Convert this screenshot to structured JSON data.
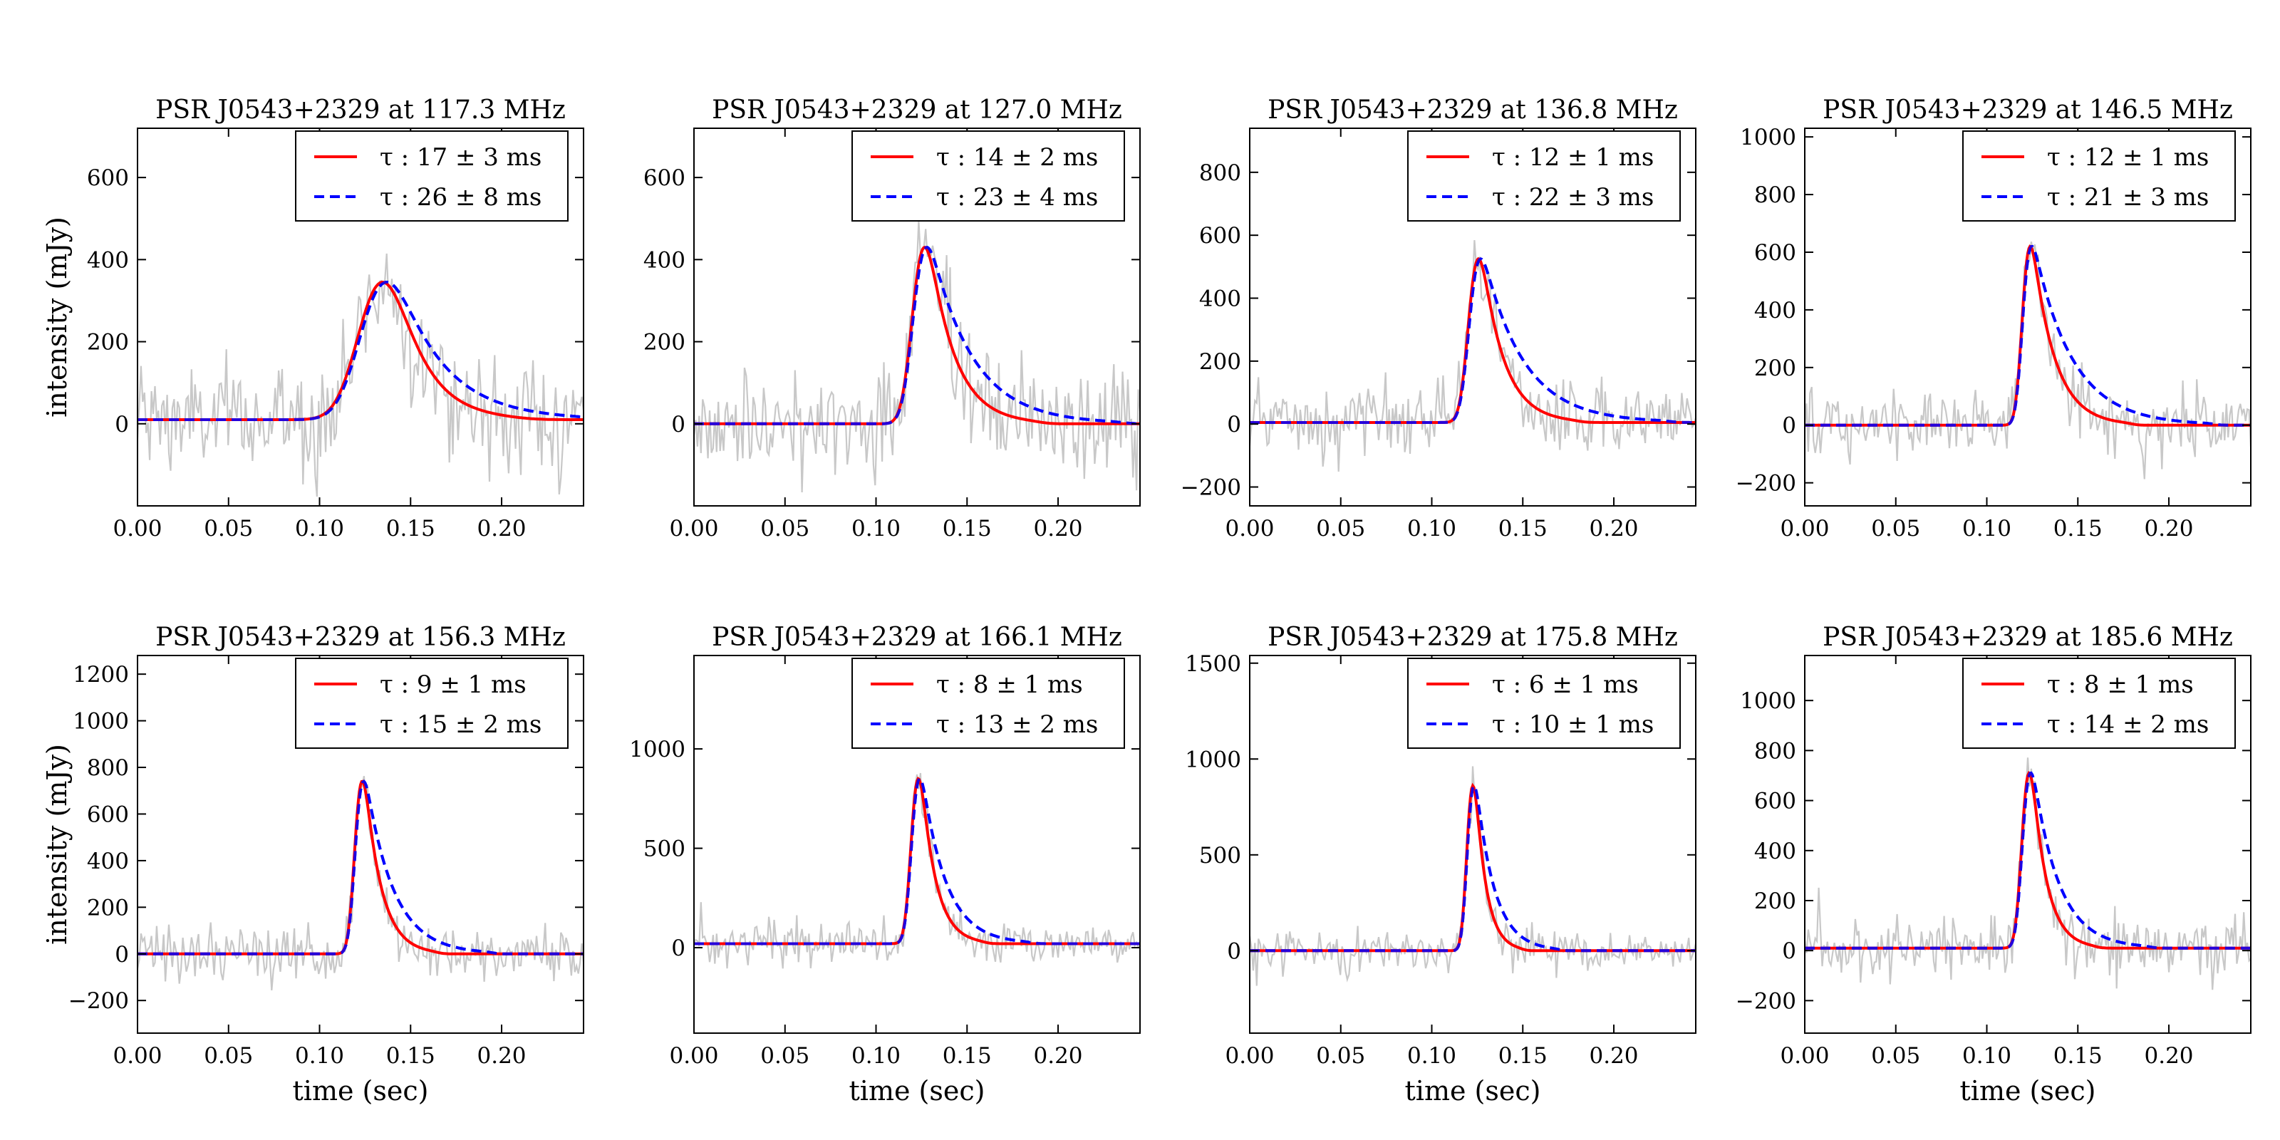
{
  "chart_data": [
    {
      "type": "line",
      "title": "PSR J0543+2329 at 117.3 MHz",
      "ylabel": "intensity (mJy)",
      "xlabel": "",
      "xlim": [
        0,
        0.245
      ],
      "ylim": [
        -200,
        720
      ],
      "xticks": [
        0.0,
        0.05,
        0.1,
        0.15,
        0.2
      ],
      "xtick_labels": [
        "0.00",
        "0.05",
        "0.10",
        "0.15",
        "0.20"
      ],
      "yticks": [
        0,
        200,
        400,
        600
      ],
      "ytick_labels": [
        "0",
        "200",
        "400",
        "600"
      ],
      "baseline": 10,
      "peak_time": 0.125,
      "peak_amplitude": 335,
      "pulse_width": 0.011,
      "noise_sigma": 70,
      "series": [
        {
          "name": "data",
          "color": "#c8c8c8",
          "style": "noise"
        },
        {
          "name": "τ : 17 ± 3 ms",
          "color": "#ff0000",
          "style": "solid",
          "tau_ms": 17,
          "tau_err_ms": 3
        },
        {
          "name": "τ : 26 ± 8 ms",
          "color": "#0000ff",
          "style": "dashed",
          "tau_ms": 26,
          "tau_err_ms": 8
        }
      ],
      "legend": {
        "location": "upper right",
        "entries": [
          "τ : 17 ± 3 ms",
          "τ : 26 ± 8 ms"
        ]
      }
    },
    {
      "type": "line",
      "title": "PSR J0543+2329 at 127.0 MHz",
      "ylabel": "",
      "xlabel": "",
      "xlim": [
        0,
        0.245
      ],
      "ylim": [
        -200,
        720
      ],
      "xticks": [
        0.0,
        0.05,
        0.1,
        0.15,
        0.2
      ],
      "xtick_labels": [
        "0.00",
        "0.05",
        "0.10",
        "0.15",
        "0.20"
      ],
      "yticks": [
        0,
        200,
        400,
        600
      ],
      "ytick_labels": [
        "0",
        "200",
        "400",
        "600"
      ],
      "baseline": 0,
      "peak_time": 0.121,
      "peak_amplitude": 430,
      "pulse_width": 0.005,
      "noise_sigma": 70,
      "series": [
        {
          "name": "data",
          "color": "#c8c8c8",
          "style": "noise"
        },
        {
          "name": "τ : 14 ± 2 ms",
          "color": "#ff0000",
          "style": "solid",
          "tau_ms": 14,
          "tau_err_ms": 2
        },
        {
          "name": "τ : 23 ± 4 ms",
          "color": "#0000ff",
          "style": "dashed",
          "tau_ms": 23,
          "tau_err_ms": 4
        }
      ],
      "legend": {
        "location": "upper right",
        "entries": [
          "τ : 14 ± 2 ms",
          "τ : 23 ± 4 ms"
        ]
      }
    },
    {
      "type": "line",
      "title": "PSR J0543+2329 at 136.8 MHz",
      "ylabel": "",
      "xlabel": "",
      "xlim": [
        0,
        0.245
      ],
      "ylim": [
        -260,
        940
      ],
      "xticks": [
        0.0,
        0.05,
        0.1,
        0.15,
        0.2
      ],
      "xtick_labels": [
        "0.00",
        "0.05",
        "0.10",
        "0.15",
        "0.20"
      ],
      "yticks": [
        -200,
        0,
        200,
        400,
        600,
        800
      ],
      "ytick_labels": [
        "−200",
        "0",
        "200",
        "400",
        "600",
        "800"
      ],
      "baseline": 5,
      "peak_time": 0.121,
      "peak_amplitude": 520,
      "pulse_width": 0.004,
      "noise_sigma": 55,
      "series": [
        {
          "name": "data",
          "color": "#c8c8c8",
          "style": "noise"
        },
        {
          "name": "τ : 12 ± 1 ms",
          "color": "#ff0000",
          "style": "solid",
          "tau_ms": 12,
          "tau_err_ms": 1
        },
        {
          "name": "τ : 22 ± 3 ms",
          "color": "#0000ff",
          "style": "dashed",
          "tau_ms": 22,
          "tau_err_ms": 3
        }
      ],
      "legend": {
        "location": "upper right",
        "entries": [
          "τ : 12 ± 1 ms",
          "τ : 22 ± 3 ms"
        ]
      }
    },
    {
      "type": "line",
      "title": "PSR J0543+2329 at 146.5 MHz",
      "ylabel": "",
      "xlabel": "",
      "xlim": [
        0,
        0.245
      ],
      "ylim": [
        -280,
        1030
      ],
      "xticks": [
        0.0,
        0.05,
        0.1,
        0.15,
        0.2
      ],
      "xtick_labels": [
        "0.00",
        "0.05",
        "0.10",
        "0.15",
        "0.20"
      ],
      "yticks": [
        -200,
        0,
        200,
        400,
        600,
        800,
        1000
      ],
      "ytick_labels": [
        "−200",
        "0",
        "200",
        "400",
        "600",
        "800",
        "1000"
      ],
      "baseline": 0,
      "peak_time": 0.12,
      "peak_amplitude": 620,
      "pulse_width": 0.003,
      "noise_sigma": 60,
      "series": [
        {
          "name": "data",
          "color": "#c8c8c8",
          "style": "noise"
        },
        {
          "name": "τ : 12 ± 1 ms",
          "color": "#ff0000",
          "style": "solid",
          "tau_ms": 12,
          "tau_err_ms": 1
        },
        {
          "name": "τ : 21 ± 3 ms",
          "color": "#0000ff",
          "style": "dashed",
          "tau_ms": 21,
          "tau_err_ms": 3
        }
      ],
      "legend": {
        "location": "upper right",
        "entries": [
          "τ : 12 ± 1 ms",
          "τ : 21 ± 3 ms"
        ]
      }
    },
    {
      "type": "line",
      "title": "PSR J0543+2329 at 156.3 MHz",
      "ylabel": "intensity (mJy)",
      "xlabel": "time (sec)",
      "xlim": [
        0,
        0.245
      ],
      "ylim": [
        -340,
        1280
      ],
      "xticks": [
        0.0,
        0.05,
        0.1,
        0.15,
        0.2
      ],
      "xtick_labels": [
        "0.00",
        "0.05",
        "0.10",
        "0.15",
        "0.20"
      ],
      "yticks": [
        -200,
        0,
        200,
        400,
        600,
        800,
        1000,
        1200
      ],
      "ytick_labels": [
        "−200",
        "0",
        "200",
        "400",
        "600",
        "800",
        "1000",
        "1200"
      ],
      "baseline": 0,
      "peak_time": 0.12,
      "peak_amplitude": 740,
      "pulse_width": 0.003,
      "noise_sigma": 60,
      "series": [
        {
          "name": "data",
          "color": "#c8c8c8",
          "style": "noise"
        },
        {
          "name": "τ : 9 ± 1 ms",
          "color": "#ff0000",
          "style": "solid",
          "tau_ms": 9,
          "tau_err_ms": 1
        },
        {
          "name": "τ : 15 ± 2 ms",
          "color": "#0000ff",
          "style": "dashed",
          "tau_ms": 15,
          "tau_err_ms": 2
        }
      ],
      "legend": {
        "location": "upper right",
        "entries": [
          "τ : 9 ± 1 ms",
          "τ : 15 ± 2 ms"
        ]
      }
    },
    {
      "type": "line",
      "title": "PSR J0543+2329 at 166.1 MHz",
      "ylabel": "",
      "xlabel": "time (sec)",
      "xlim": [
        0,
        0.245
      ],
      "ylim": [
        -430,
        1470
      ],
      "xticks": [
        0.0,
        0.05,
        0.1,
        0.15,
        0.2
      ],
      "xtick_labels": [
        "0.00",
        "0.05",
        "0.10",
        "0.15",
        "0.20"
      ],
      "yticks": [
        0,
        500,
        1000
      ],
      "ytick_labels": [
        "0",
        "500",
        "1000"
      ],
      "baseline": 20,
      "peak_time": 0.12,
      "peak_amplitude": 830,
      "pulse_width": 0.003,
      "noise_sigma": 55,
      "series": [
        {
          "name": "data",
          "color": "#c8c8c8",
          "style": "noise"
        },
        {
          "name": "τ : 8 ± 1 ms",
          "color": "#ff0000",
          "style": "solid",
          "tau_ms": 8,
          "tau_err_ms": 1
        },
        {
          "name": "τ : 13 ± 2 ms",
          "color": "#0000ff",
          "style": "dashed",
          "tau_ms": 13,
          "tau_err_ms": 2
        }
      ],
      "legend": {
        "location": "upper right",
        "entries": [
          "τ : 8 ± 1 ms",
          "τ : 13 ± 2 ms"
        ]
      }
    },
    {
      "type": "line",
      "title": "PSR J0543+2329 at 175.8 MHz",
      "ylabel": "",
      "xlabel": "time (sec)",
      "xlim": [
        0,
        0.245
      ],
      "ylim": [
        -430,
        1540
      ],
      "xticks": [
        0.0,
        0.05,
        0.1,
        0.15,
        0.2
      ],
      "xtick_labels": [
        "0.00",
        "0.05",
        "0.10",
        "0.15",
        "0.20"
      ],
      "yticks": [
        0,
        500,
        1000,
        1500
      ],
      "ytick_labels": [
        "0",
        "500",
        "1000",
        "1500"
      ],
      "baseline": 0,
      "peak_time": 0.12,
      "peak_amplitude": 860,
      "pulse_width": 0.0025,
      "noise_sigma": 55,
      "series": [
        {
          "name": "data",
          "color": "#c8c8c8",
          "style": "noise"
        },
        {
          "name": "τ : 6 ± 1 ms",
          "color": "#ff0000",
          "style": "solid",
          "tau_ms": 6,
          "tau_err_ms": 1
        },
        {
          "name": "τ : 10 ± 1 ms",
          "color": "#0000ff",
          "style": "dashed",
          "tau_ms": 10,
          "tau_err_ms": 1
        }
      ],
      "legend": {
        "location": "upper right",
        "entries": [
          "τ : 6 ± 1 ms",
          "τ : 10 ± 1 ms"
        ]
      }
    },
    {
      "type": "line",
      "title": "PSR J0543+2329 at 185.6 MHz",
      "ylabel": "",
      "xlabel": "time (sec)",
      "xlim": [
        0,
        0.245
      ],
      "ylim": [
        -330,
        1180
      ],
      "xticks": [
        0.0,
        0.05,
        0.1,
        0.15,
        0.2
      ],
      "xtick_labels": [
        "0.00",
        "0.05",
        "0.10",
        "0.15",
        "0.20"
      ],
      "yticks": [
        -200,
        0,
        200,
        400,
        600,
        800,
        1000
      ],
      "ytick_labels": [
        "−200",
        "0",
        "200",
        "400",
        "600",
        "800",
        "1000"
      ],
      "baseline": 10,
      "peak_time": 0.12,
      "peak_amplitude": 700,
      "pulse_width": 0.003,
      "noise_sigma": 65,
      "series": [
        {
          "name": "data",
          "color": "#c8c8c8",
          "style": "noise"
        },
        {
          "name": "τ : 8 ± 1 ms",
          "color": "#ff0000",
          "style": "solid",
          "tau_ms": 8,
          "tau_err_ms": 1
        },
        {
          "name": "τ : 14 ± 2 ms",
          "color": "#0000ff",
          "style": "dashed",
          "tau_ms": 14,
          "tau_err_ms": 2
        }
      ],
      "legend": {
        "location": "upper right",
        "entries": [
          "τ : 8 ± 1 ms",
          "τ : 14 ± 2 ms"
        ]
      }
    }
  ]
}
